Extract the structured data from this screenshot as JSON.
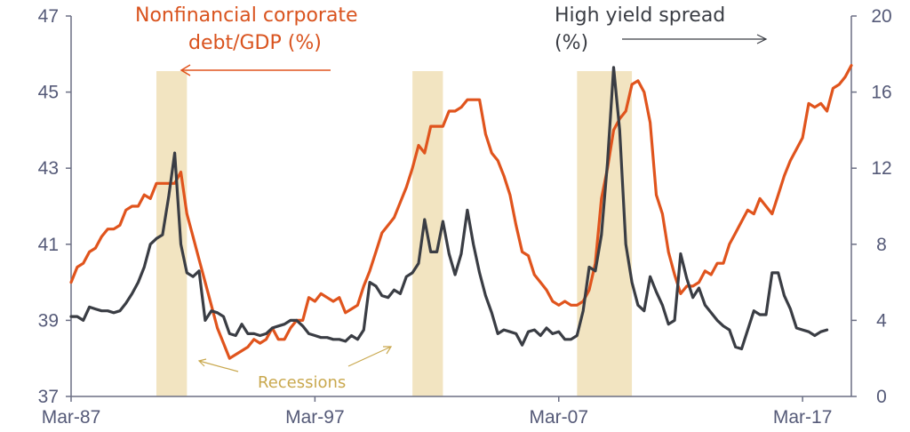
{
  "chart_data": {
    "type": "line",
    "x_ticks": [
      "Mar-87",
      "Mar-97",
      "Mar-07",
      "Mar-17"
    ],
    "x_range": [
      1987.0,
      2019.0
    ],
    "y_left": {
      "ticks": [
        "37",
        "39",
        "41",
        "43",
        "45",
        "47"
      ],
      "range": [
        37,
        47
      ]
    },
    "y_right": {
      "ticks": [
        "0",
        "4",
        "8",
        "12",
        "16",
        "20"
      ],
      "range": [
        0,
        20
      ]
    },
    "annotations": {
      "debt_label_line1": "Nonfinancial corporate",
      "debt_label_line2": "debt/GDP (%)",
      "spread_label_line1": "High yield spread",
      "spread_label_line2": "(%)",
      "recessions_label": "Recessions"
    },
    "recessions": [
      [
        1990.5,
        1991.75
      ],
      [
        2001.0,
        2002.25
      ],
      [
        2007.75,
        2010.0
      ]
    ],
    "series": [
      {
        "name": "Nonfinancial corporate debt/GDP (%)",
        "axis": "left",
        "color": "#e0541d",
        "points": [
          [
            1987.0,
            40.0
          ],
          [
            1987.25,
            40.4
          ],
          [
            1987.5,
            40.5
          ],
          [
            1987.75,
            40.8
          ],
          [
            1988.0,
            40.9
          ],
          [
            1988.25,
            41.2
          ],
          [
            1988.5,
            41.4
          ],
          [
            1988.75,
            41.4
          ],
          [
            1989.0,
            41.5
          ],
          [
            1989.25,
            41.9
          ],
          [
            1989.5,
            42.0
          ],
          [
            1989.75,
            42.0
          ],
          [
            1990.0,
            42.3
          ],
          [
            1990.25,
            42.2
          ],
          [
            1990.5,
            42.6
          ],
          [
            1990.75,
            42.6
          ],
          [
            1991.0,
            42.6
          ],
          [
            1991.25,
            42.6
          ],
          [
            1991.5,
            42.9
          ],
          [
            1991.75,
            41.8
          ],
          [
            1992.0,
            41.2
          ],
          [
            1992.25,
            40.6
          ],
          [
            1992.5,
            40.0
          ],
          [
            1992.75,
            39.4
          ],
          [
            1993.0,
            38.8
          ],
          [
            1993.25,
            38.4
          ],
          [
            1993.5,
            38.0
          ],
          [
            1993.75,
            38.1
          ],
          [
            1994.0,
            38.2
          ],
          [
            1994.25,
            38.3
          ],
          [
            1994.5,
            38.5
          ],
          [
            1994.75,
            38.4
          ],
          [
            1995.0,
            38.5
          ],
          [
            1995.25,
            38.8
          ],
          [
            1995.5,
            38.5
          ],
          [
            1995.75,
            38.5
          ],
          [
            1996.0,
            38.8
          ],
          [
            1996.25,
            39.0
          ],
          [
            1996.5,
            39.0
          ],
          [
            1996.75,
            39.6
          ],
          [
            1997.0,
            39.5
          ],
          [
            1997.25,
            39.7
          ],
          [
            1997.5,
            39.6
          ],
          [
            1997.75,
            39.5
          ],
          [
            1998.0,
            39.6
          ],
          [
            1998.25,
            39.2
          ],
          [
            1998.5,
            39.3
          ],
          [
            1998.75,
            39.4
          ],
          [
            1999.0,
            39.9
          ],
          [
            1999.25,
            40.3
          ],
          [
            1999.5,
            40.8
          ],
          [
            1999.75,
            41.3
          ],
          [
            2000.0,
            41.5
          ],
          [
            2000.25,
            41.7
          ],
          [
            2000.5,
            42.1
          ],
          [
            2000.75,
            42.5
          ],
          [
            2001.0,
            43.0
          ],
          [
            2001.25,
            43.6
          ],
          [
            2001.5,
            43.4
          ],
          [
            2001.75,
            44.1
          ],
          [
            2002.0,
            44.1
          ],
          [
            2002.25,
            44.1
          ],
          [
            2002.5,
            44.5
          ],
          [
            2002.75,
            44.5
          ],
          [
            2003.0,
            44.6
          ],
          [
            2003.25,
            44.8
          ],
          [
            2003.5,
            44.8
          ],
          [
            2003.75,
            44.8
          ],
          [
            2004.0,
            43.9
          ],
          [
            2004.25,
            43.4
          ],
          [
            2004.5,
            43.2
          ],
          [
            2004.75,
            42.8
          ],
          [
            2005.0,
            42.3
          ],
          [
            2005.25,
            41.5
          ],
          [
            2005.5,
            40.8
          ],
          [
            2005.75,
            40.7
          ],
          [
            2006.0,
            40.2
          ],
          [
            2006.25,
            40.0
          ],
          [
            2006.5,
            39.8
          ],
          [
            2006.75,
            39.5
          ],
          [
            2007.0,
            39.4
          ],
          [
            2007.25,
            39.5
          ],
          [
            2007.5,
            39.4
          ],
          [
            2007.75,
            39.4
          ],
          [
            2008.0,
            39.5
          ],
          [
            2008.25,
            39.8
          ],
          [
            2008.5,
            40.5
          ],
          [
            2008.75,
            42.2
          ],
          [
            2009.0,
            43.0
          ],
          [
            2009.25,
            44.0
          ],
          [
            2009.5,
            44.3
          ],
          [
            2009.75,
            44.5
          ],
          [
            2010.0,
            45.2
          ],
          [
            2010.25,
            45.3
          ],
          [
            2010.5,
            45.0
          ],
          [
            2010.75,
            44.2
          ],
          [
            2011.0,
            42.3
          ],
          [
            2011.25,
            41.8
          ],
          [
            2011.5,
            40.8
          ],
          [
            2011.75,
            40.2
          ],
          [
            2012.0,
            39.7
          ],
          [
            2012.25,
            39.9
          ],
          [
            2012.5,
            39.9
          ],
          [
            2012.75,
            40.0
          ],
          [
            2013.0,
            40.3
          ],
          [
            2013.25,
            40.2
          ],
          [
            2013.5,
            40.5
          ],
          [
            2013.75,
            40.5
          ],
          [
            2014.0,
            41.0
          ],
          [
            2014.25,
            41.3
          ],
          [
            2014.5,
            41.6
          ],
          [
            2014.75,
            41.9
          ],
          [
            2015.0,
            41.8
          ],
          [
            2015.25,
            42.2
          ],
          [
            2015.5,
            42.0
          ],
          [
            2015.75,
            41.8
          ],
          [
            2016.0,
            42.3
          ],
          [
            2016.25,
            42.8
          ],
          [
            2016.5,
            43.2
          ],
          [
            2016.75,
            43.5
          ],
          [
            2017.0,
            43.8
          ],
          [
            2017.25,
            44.7
          ],
          [
            2017.5,
            44.6
          ],
          [
            2017.75,
            44.7
          ],
          [
            2018.0,
            44.5
          ],
          [
            2018.25,
            45.1
          ],
          [
            2018.5,
            45.2
          ],
          [
            2018.75,
            45.4
          ],
          [
            2019.0,
            45.7
          ]
        ]
      },
      {
        "name": "High yield spread (%)",
        "axis": "right",
        "color": "#3a3d44",
        "points": [
          [
            1987.0,
            4.2
          ],
          [
            1987.25,
            4.2
          ],
          [
            1987.5,
            4.0
          ],
          [
            1987.75,
            4.7
          ],
          [
            1988.0,
            4.6
          ],
          [
            1988.25,
            4.5
          ],
          [
            1988.5,
            4.5
          ],
          [
            1988.75,
            4.4
          ],
          [
            1989.0,
            4.5
          ],
          [
            1989.25,
            4.9
          ],
          [
            1989.5,
            5.4
          ],
          [
            1989.75,
            6.0
          ],
          [
            1990.0,
            6.8
          ],
          [
            1990.25,
            8.0
          ],
          [
            1990.5,
            8.3
          ],
          [
            1990.75,
            8.5
          ],
          [
            1991.0,
            10.5
          ],
          [
            1991.25,
            12.8
          ],
          [
            1991.5,
            8.0
          ],
          [
            1991.75,
            6.5
          ],
          [
            1992.0,
            6.3
          ],
          [
            1992.25,
            6.6
          ],
          [
            1992.5,
            4.0
          ],
          [
            1992.75,
            4.5
          ],
          [
            1993.0,
            4.4
          ],
          [
            1993.25,
            4.2
          ],
          [
            1993.5,
            3.3
          ],
          [
            1993.75,
            3.2
          ],
          [
            1994.0,
            3.8
          ],
          [
            1994.25,
            3.3
          ],
          [
            1994.5,
            3.3
          ],
          [
            1994.75,
            3.2
          ],
          [
            1995.0,
            3.3
          ],
          [
            1995.25,
            3.6
          ],
          [
            1995.5,
            3.7
          ],
          [
            1995.75,
            3.8
          ],
          [
            1996.0,
            4.0
          ],
          [
            1996.25,
            4.0
          ],
          [
            1996.5,
            3.7
          ],
          [
            1996.75,
            3.3
          ],
          [
            1997.0,
            3.2
          ],
          [
            1997.25,
            3.1
          ],
          [
            1997.5,
            3.1
          ],
          [
            1997.75,
            3.0
          ],
          [
            1998.0,
            3.0
          ],
          [
            1998.25,
            2.9
          ],
          [
            1998.5,
            3.2
          ],
          [
            1998.75,
            3.0
          ],
          [
            1999.0,
            3.5
          ],
          [
            1999.25,
            6.0
          ],
          [
            1999.5,
            5.8
          ],
          [
            1999.75,
            5.3
          ],
          [
            2000.0,
            5.2
          ],
          [
            2000.25,
            5.6
          ],
          [
            2000.5,
            5.4
          ],
          [
            2000.75,
            6.3
          ],
          [
            2001.0,
            6.5
          ],
          [
            2001.25,
            7.0
          ],
          [
            2001.5,
            9.3
          ],
          [
            2001.75,
            7.6
          ],
          [
            2002.0,
            7.6
          ],
          [
            2002.25,
            9.2
          ],
          [
            2002.5,
            7.5
          ],
          [
            2002.75,
            6.4
          ],
          [
            2003.0,
            7.5
          ],
          [
            2003.25,
            9.8
          ],
          [
            2003.5,
            8.0
          ],
          [
            2003.75,
            6.5
          ],
          [
            2004.0,
            5.3
          ],
          [
            2004.25,
            4.4
          ],
          [
            2004.5,
            3.3
          ],
          [
            2004.75,
            3.5
          ],
          [
            2005.0,
            3.4
          ],
          [
            2005.25,
            3.3
          ],
          [
            2005.5,
            2.7
          ],
          [
            2005.75,
            3.4
          ],
          [
            2006.0,
            3.5
          ],
          [
            2006.25,
            3.2
          ],
          [
            2006.5,
            3.6
          ],
          [
            2006.75,
            3.3
          ],
          [
            2007.0,
            3.4
          ],
          [
            2007.25,
            3.0
          ],
          [
            2007.5,
            3.0
          ],
          [
            2007.75,
            3.2
          ],
          [
            2008.0,
            4.5
          ],
          [
            2008.25,
            6.8
          ],
          [
            2008.5,
            6.6
          ],
          [
            2008.75,
            8.5
          ],
          [
            2009.0,
            12.3
          ],
          [
            2009.25,
            17.3
          ],
          [
            2009.5,
            14.0
          ],
          [
            2009.75,
            8.0
          ],
          [
            2010.0,
            6.0
          ],
          [
            2010.25,
            4.8
          ],
          [
            2010.5,
            4.5
          ],
          [
            2010.75,
            6.3
          ],
          [
            2011.0,
            5.5
          ],
          [
            2011.25,
            4.8
          ],
          [
            2011.5,
            3.8
          ],
          [
            2011.75,
            4.0
          ],
          [
            2012.0,
            7.5
          ],
          [
            2012.25,
            6.2
          ],
          [
            2012.5,
            5.2
          ],
          [
            2012.75,
            5.7
          ],
          [
            2013.0,
            4.8
          ],
          [
            2013.25,
            4.4
          ],
          [
            2013.5,
            4.0
          ],
          [
            2013.75,
            3.7
          ],
          [
            2014.0,
            3.5
          ],
          [
            2014.25,
            2.6
          ],
          [
            2014.5,
            2.5
          ],
          [
            2014.75,
            3.5
          ],
          [
            2015.0,
            4.5
          ],
          [
            2015.25,
            4.3
          ],
          [
            2015.5,
            4.3
          ],
          [
            2015.75,
            6.5
          ],
          [
            2016.0,
            6.5
          ],
          [
            2016.25,
            5.3
          ],
          [
            2016.5,
            4.6
          ],
          [
            2016.75,
            3.6
          ],
          [
            2017.0,
            3.5
          ],
          [
            2017.25,
            3.4
          ],
          [
            2017.5,
            3.2
          ],
          [
            2017.75,
            3.4
          ],
          [
            2018.0,
            3.5
          ]
        ]
      }
    ]
  }
}
